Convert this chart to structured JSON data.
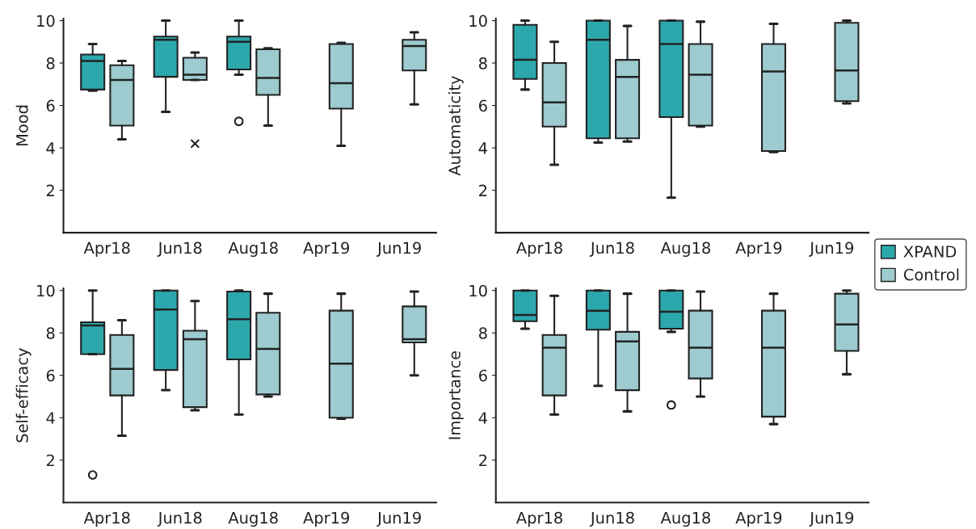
{
  "chart_data": [
    {
      "type": "box",
      "ylabel": "Mood",
      "categories": [
        "Apr18",
        "Jun18",
        "Aug18",
        "Apr19",
        "Jun19"
      ],
      "ylim": [
        0,
        10.1
      ],
      "yticks": [
        2,
        4,
        6,
        8,
        10
      ],
      "legend": "right",
      "series": [
        {
          "name": "XPAND",
          "color": "#2ca8ad",
          "marker": "circle",
          "boxes": [
            {
              "low": 6.7,
              "q1": 6.75,
              "median": 8.1,
              "q3": 8.4,
              "high": 8.9
            },
            {
              "low": 5.7,
              "q1": 7.35,
              "median": 9.1,
              "q3": 9.25,
              "high": 10
            },
            {
              "low": 7.45,
              "q1": 7.7,
              "median": 9.0,
              "q3": 9.25,
              "high": 10,
              "outliers": [
                5.25
              ]
            },
            null,
            null
          ]
        },
        {
          "name": "Control",
          "color": "#9dcbcf",
          "marker": "cross",
          "boxes": [
            {
              "low": 4.4,
              "q1": 5.05,
              "median": 7.2,
              "q3": 7.9,
              "high": 8.1
            },
            {
              "low": 7.2,
              "q1": 7.2,
              "median": 7.45,
              "q3": 8.25,
              "high": 8.5,
              "outliers": [
                4.2
              ]
            },
            {
              "low": 5.05,
              "q1": 6.5,
              "median": 7.3,
              "q3": 8.65,
              "high": 8.7
            },
            {
              "low": 4.1,
              "q1": 5.85,
              "median": 7.05,
              "q3": 8.9,
              "high": 8.95
            },
            {
              "low": 6.05,
              "q1": 7.65,
              "median": 8.8,
              "q3": 9.1,
              "high": 9.45
            }
          ]
        }
      ]
    },
    {
      "type": "box",
      "ylabel": "Automaticity",
      "categories": [
        "Apr18",
        "Jun18",
        "Aug18",
        "Apr19",
        "Jun19"
      ],
      "ylim": [
        0,
        10.1
      ],
      "yticks": [
        2,
        4,
        6,
        8,
        10
      ],
      "series": [
        {
          "color": "#2ca8ad",
          "marker": "circle",
          "boxes": [
            {
              "low": 6.75,
              "q1": 7.25,
              "median": 8.15,
              "q3": 9.8,
              "high": 10
            },
            {
              "low": 4.25,
              "q1": 4.45,
              "median": 9.1,
              "q3": 10,
              "high": 10
            },
            {
              "low": 1.65,
              "q1": 5.45,
              "median": 8.9,
              "q3": 10,
              "high": 10
            },
            null,
            null
          ]
        },
        {
          "color": "#9dcbcf",
          "marker": "cross",
          "boxes": [
            {
              "low": 3.2,
              "q1": 5.0,
              "median": 6.15,
              "q3": 8.0,
              "high": 9.0
            },
            {
              "low": 4.3,
              "q1": 4.45,
              "median": 7.35,
              "q3": 8.15,
              "high": 9.75
            },
            {
              "low": 5.0,
              "q1": 5.05,
              "median": 7.45,
              "q3": 8.9,
              "high": 9.95
            },
            {
              "low": 3.8,
              "q1": 3.85,
              "median": 7.6,
              "q3": 8.9,
              "high": 9.85
            },
            {
              "low": 6.1,
              "q1": 6.2,
              "median": 7.65,
              "q3": 9.9,
              "high": 10
            }
          ]
        }
      ]
    },
    {
      "type": "box",
      "ylabel": "Self-efficacy",
      "categories": [
        "Apr18",
        "Jun18",
        "Aug18",
        "Apr19",
        "Jun19"
      ],
      "ylim": [
        0,
        10.1
      ],
      "yticks": [
        2,
        4,
        6,
        8,
        10
      ],
      "series": [
        {
          "color": "#2ca8ad",
          "marker": "circle",
          "boxes": [
            {
              "low": 7.0,
              "q1": 7.0,
              "median": 8.35,
              "q3": 8.5,
              "high": 10,
              "outliers": [
                1.3
              ]
            },
            {
              "low": 5.3,
              "q1": 6.25,
              "median": 9.1,
              "q3": 10,
              "high": 10
            },
            {
              "low": 4.15,
              "q1": 6.75,
              "median": 8.65,
              "q3": 9.95,
              "high": 10
            },
            null,
            null
          ]
        },
        {
          "color": "#9dcbcf",
          "marker": "cross",
          "boxes": [
            {
              "low": 3.15,
              "q1": 5.05,
              "median": 6.3,
              "q3": 7.9,
              "high": 8.6
            },
            {
              "low": 4.35,
              "q1": 4.5,
              "median": 7.7,
              "q3": 8.1,
              "high": 9.5
            },
            {
              "low": 5.0,
              "q1": 5.1,
              "median": 7.25,
              "q3": 8.95,
              "high": 9.85
            },
            {
              "low": 3.95,
              "q1": 4.0,
              "median": 6.55,
              "q3": 9.05,
              "high": 9.85
            },
            {
              "low": 6.0,
              "q1": 7.55,
              "median": 7.7,
              "q3": 9.25,
              "high": 9.95
            }
          ]
        }
      ]
    },
    {
      "type": "box",
      "ylabel": "Importance",
      "categories": [
        "Apr18",
        "Jun18",
        "Aug18",
        "Apr19",
        "Jun19"
      ],
      "ylim": [
        0,
        10.1
      ],
      "yticks": [
        2,
        4,
        6,
        8,
        10
      ],
      "series": [
        {
          "color": "#2ca8ad",
          "marker": "circle",
          "boxes": [
            {
              "low": 8.2,
              "q1": 8.55,
              "median": 8.85,
              "q3": 10,
              "high": 10
            },
            {
              "low": 5.5,
              "q1": 8.15,
              "median": 9.05,
              "q3": 10,
              "high": 10
            },
            {
              "low": 8.05,
              "q1": 8.2,
              "median": 9.0,
              "q3": 10,
              "high": 10,
              "outliers": [
                4.6
              ]
            },
            null,
            null
          ]
        },
        {
          "color": "#9dcbcf",
          "marker": "cross",
          "boxes": [
            {
              "low": 4.15,
              "q1": 5.05,
              "median": 7.3,
              "q3": 7.9,
              "high": 9.75
            },
            {
              "low": 4.3,
              "q1": 5.3,
              "median": 7.6,
              "q3": 8.05,
              "high": 9.85
            },
            {
              "low": 5.0,
              "q1": 5.85,
              "median": 7.3,
              "q3": 9.05,
              "high": 9.95
            },
            {
              "low": 3.7,
              "q1": 4.05,
              "median": 7.3,
              "q3": 9.05,
              "high": 9.85
            },
            {
              "low": 6.05,
              "q1": 7.15,
              "median": 8.4,
              "q3": 9.85,
              "high": 10
            }
          ]
        }
      ]
    }
  ]
}
